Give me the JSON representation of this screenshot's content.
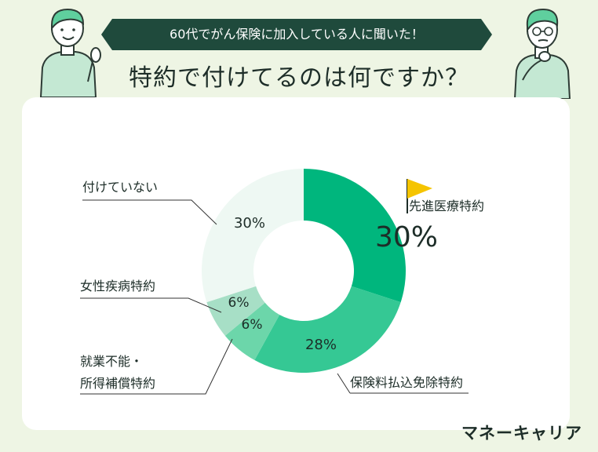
{
  "header": {
    "banner_text": "60代でがん保険に加入している人に聞いた！",
    "question": "特約で付けてるのは何ですか？"
  },
  "brand": "マネーキャリア",
  "colors": {
    "background": "#eef5e4",
    "banner": "#1f4a3c",
    "accent_flag": "#f5c400",
    "slices": [
      "#00b67d",
      "#35c894",
      "#6cd6aa",
      "#a7dfc6",
      "#eef8f3"
    ]
  },
  "chart_data": {
    "type": "pie",
    "subtype": "donut",
    "title": "特約で付けてるのは何ですか？",
    "slices": [
      {
        "label": "先進医療特約",
        "value": 30,
        "value_label": "30%",
        "highlight": true
      },
      {
        "label": "保険料払込免除特約",
        "value": 28,
        "value_label": "28%"
      },
      {
        "label": "就業不能・所得補償特約",
        "value": 6,
        "value_label": "6%"
      },
      {
        "label": "女性疾病特約",
        "value": 6,
        "value_label": "6%"
      },
      {
        "label": "付けていない",
        "value": 30,
        "value_label": "30%"
      }
    ]
  }
}
